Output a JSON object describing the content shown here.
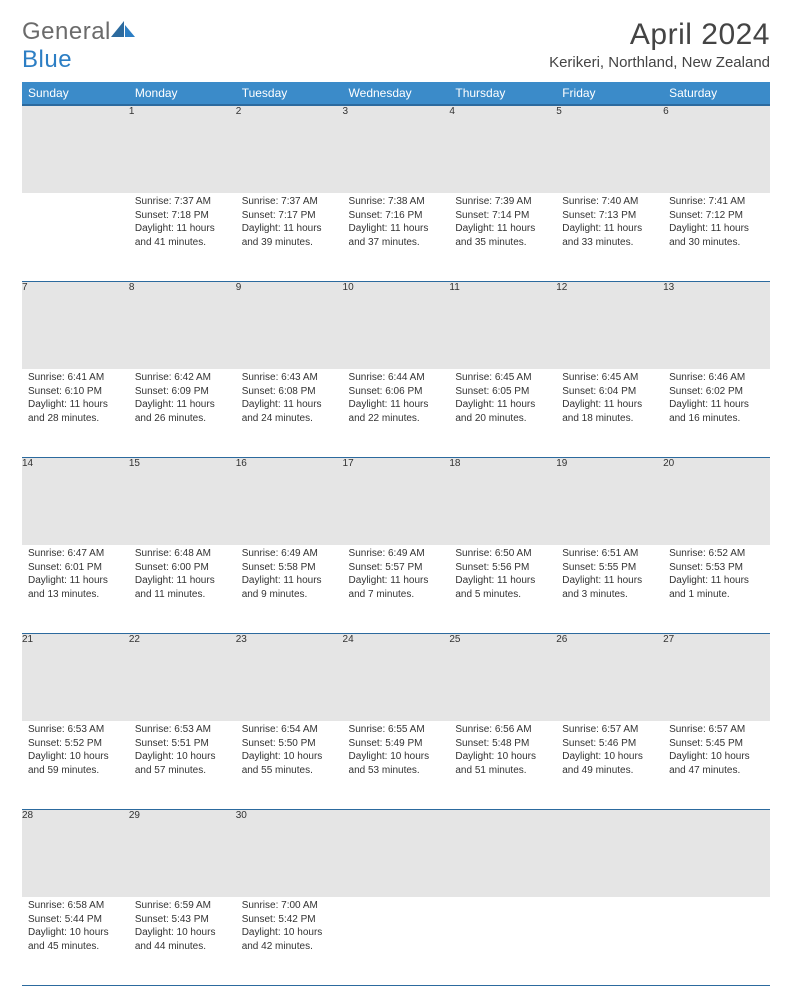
{
  "logo": {
    "word1": "General",
    "word2": "Blue"
  },
  "title": "April 2024",
  "location": "Kerikeri, Northland, New Zealand",
  "colors": {
    "header_bg": "#3b8bc9",
    "header_border": "#2c6a9e",
    "daynum_bg": "#e5e5e5",
    "text": "#333333",
    "logo_gray": "#6b6b6b",
    "logo_blue": "#2c7ec4"
  },
  "weekdays": [
    "Sunday",
    "Monday",
    "Tuesday",
    "Wednesday",
    "Thursday",
    "Friday",
    "Saturday"
  ],
  "weeks": [
    {
      "nums": [
        "",
        "1",
        "2",
        "3",
        "4",
        "5",
        "6"
      ],
      "cells": [
        {},
        {
          "sunrise": "Sunrise: 7:37 AM",
          "sunset": "Sunset: 7:18 PM",
          "day1": "Daylight: 11 hours",
          "day2": "and 41 minutes."
        },
        {
          "sunrise": "Sunrise: 7:37 AM",
          "sunset": "Sunset: 7:17 PM",
          "day1": "Daylight: 11 hours",
          "day2": "and 39 minutes."
        },
        {
          "sunrise": "Sunrise: 7:38 AM",
          "sunset": "Sunset: 7:16 PM",
          "day1": "Daylight: 11 hours",
          "day2": "and 37 minutes."
        },
        {
          "sunrise": "Sunrise: 7:39 AM",
          "sunset": "Sunset: 7:14 PM",
          "day1": "Daylight: 11 hours",
          "day2": "and 35 minutes."
        },
        {
          "sunrise": "Sunrise: 7:40 AM",
          "sunset": "Sunset: 7:13 PM",
          "day1": "Daylight: 11 hours",
          "day2": "and 33 minutes."
        },
        {
          "sunrise": "Sunrise: 7:41 AM",
          "sunset": "Sunset: 7:12 PM",
          "day1": "Daylight: 11 hours",
          "day2": "and 30 minutes."
        }
      ]
    },
    {
      "nums": [
        "7",
        "8",
        "9",
        "10",
        "11",
        "12",
        "13"
      ],
      "cells": [
        {
          "sunrise": "Sunrise: 6:41 AM",
          "sunset": "Sunset: 6:10 PM",
          "day1": "Daylight: 11 hours",
          "day2": "and 28 minutes."
        },
        {
          "sunrise": "Sunrise: 6:42 AM",
          "sunset": "Sunset: 6:09 PM",
          "day1": "Daylight: 11 hours",
          "day2": "and 26 minutes."
        },
        {
          "sunrise": "Sunrise: 6:43 AM",
          "sunset": "Sunset: 6:08 PM",
          "day1": "Daylight: 11 hours",
          "day2": "and 24 minutes."
        },
        {
          "sunrise": "Sunrise: 6:44 AM",
          "sunset": "Sunset: 6:06 PM",
          "day1": "Daylight: 11 hours",
          "day2": "and 22 minutes."
        },
        {
          "sunrise": "Sunrise: 6:45 AM",
          "sunset": "Sunset: 6:05 PM",
          "day1": "Daylight: 11 hours",
          "day2": "and 20 minutes."
        },
        {
          "sunrise": "Sunrise: 6:45 AM",
          "sunset": "Sunset: 6:04 PM",
          "day1": "Daylight: 11 hours",
          "day2": "and 18 minutes."
        },
        {
          "sunrise": "Sunrise: 6:46 AM",
          "sunset": "Sunset: 6:02 PM",
          "day1": "Daylight: 11 hours",
          "day2": "and 16 minutes."
        }
      ]
    },
    {
      "nums": [
        "14",
        "15",
        "16",
        "17",
        "18",
        "19",
        "20"
      ],
      "cells": [
        {
          "sunrise": "Sunrise: 6:47 AM",
          "sunset": "Sunset: 6:01 PM",
          "day1": "Daylight: 11 hours",
          "day2": "and 13 minutes."
        },
        {
          "sunrise": "Sunrise: 6:48 AM",
          "sunset": "Sunset: 6:00 PM",
          "day1": "Daylight: 11 hours",
          "day2": "and 11 minutes."
        },
        {
          "sunrise": "Sunrise: 6:49 AM",
          "sunset": "Sunset: 5:58 PM",
          "day1": "Daylight: 11 hours",
          "day2": "and 9 minutes."
        },
        {
          "sunrise": "Sunrise: 6:49 AM",
          "sunset": "Sunset: 5:57 PM",
          "day1": "Daylight: 11 hours",
          "day2": "and 7 minutes."
        },
        {
          "sunrise": "Sunrise: 6:50 AM",
          "sunset": "Sunset: 5:56 PM",
          "day1": "Daylight: 11 hours",
          "day2": "and 5 minutes."
        },
        {
          "sunrise": "Sunrise: 6:51 AM",
          "sunset": "Sunset: 5:55 PM",
          "day1": "Daylight: 11 hours",
          "day2": "and 3 minutes."
        },
        {
          "sunrise": "Sunrise: 6:52 AM",
          "sunset": "Sunset: 5:53 PM",
          "day1": "Daylight: 11 hours",
          "day2": "and 1 minute."
        }
      ]
    },
    {
      "nums": [
        "21",
        "22",
        "23",
        "24",
        "25",
        "26",
        "27"
      ],
      "cells": [
        {
          "sunrise": "Sunrise: 6:53 AM",
          "sunset": "Sunset: 5:52 PM",
          "day1": "Daylight: 10 hours",
          "day2": "and 59 minutes."
        },
        {
          "sunrise": "Sunrise: 6:53 AM",
          "sunset": "Sunset: 5:51 PM",
          "day1": "Daylight: 10 hours",
          "day2": "and 57 minutes."
        },
        {
          "sunrise": "Sunrise: 6:54 AM",
          "sunset": "Sunset: 5:50 PM",
          "day1": "Daylight: 10 hours",
          "day2": "and 55 minutes."
        },
        {
          "sunrise": "Sunrise: 6:55 AM",
          "sunset": "Sunset: 5:49 PM",
          "day1": "Daylight: 10 hours",
          "day2": "and 53 minutes."
        },
        {
          "sunrise": "Sunrise: 6:56 AM",
          "sunset": "Sunset: 5:48 PM",
          "day1": "Daylight: 10 hours",
          "day2": "and 51 minutes."
        },
        {
          "sunrise": "Sunrise: 6:57 AM",
          "sunset": "Sunset: 5:46 PM",
          "day1": "Daylight: 10 hours",
          "day2": "and 49 minutes."
        },
        {
          "sunrise": "Sunrise: 6:57 AM",
          "sunset": "Sunset: 5:45 PM",
          "day1": "Daylight: 10 hours",
          "day2": "and 47 minutes."
        }
      ]
    },
    {
      "nums": [
        "28",
        "29",
        "30",
        "",
        "",
        "",
        ""
      ],
      "cells": [
        {
          "sunrise": "Sunrise: 6:58 AM",
          "sunset": "Sunset: 5:44 PM",
          "day1": "Daylight: 10 hours",
          "day2": "and 45 minutes."
        },
        {
          "sunrise": "Sunrise: 6:59 AM",
          "sunset": "Sunset: 5:43 PM",
          "day1": "Daylight: 10 hours",
          "day2": "and 44 minutes."
        },
        {
          "sunrise": "Sunrise: 7:00 AM",
          "sunset": "Sunset: 5:42 PM",
          "day1": "Daylight: 10 hours",
          "day2": "and 42 minutes."
        },
        {},
        {},
        {},
        {}
      ]
    }
  ]
}
